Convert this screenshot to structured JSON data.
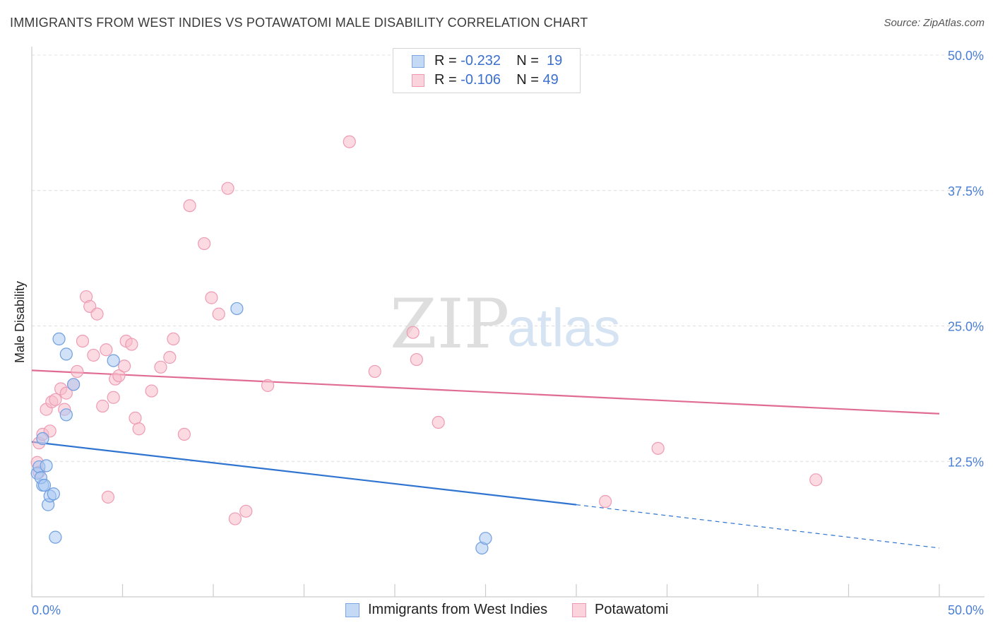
{
  "header": {
    "title": "IMMIGRANTS FROM WEST INDIES VS POTAWATOMI MALE DISABILITY CORRELATION CHART",
    "source": "Source: ZipAtlas.com"
  },
  "legend": {
    "rows": [
      {
        "r_label": "R = ",
        "r_value": "-0.232",
        "n_label": "N = ",
        "n_value": "19",
        "color": "#a9c8f2"
      },
      {
        "r_label": "R = ",
        "r_value": "-0.106",
        "n_label": "N = ",
        "n_value": "49",
        "color": "#f7bccb"
      }
    ]
  },
  "bottom_legend": {
    "items": [
      {
        "label": "Immigrants from West Indies",
        "color": "#a9c8f2"
      },
      {
        "label": "Potawatomi",
        "color": "#f7bccb"
      }
    ]
  },
  "watermark": {
    "zip": "ZIP",
    "atlas": "atlas"
  },
  "chart_data": {
    "type": "scatter",
    "title": "IMMIGRANTS FROM WEST INDIES VS POTAWATOMI MALE DISABILITY CORRELATION CHART",
    "xlabel": "",
    "ylabel": "Male Disability",
    "xlim": [
      0,
      50
    ],
    "ylim": [
      0,
      50
    ],
    "x_tick_labels": [
      "0.0%",
      "50.0%"
    ],
    "y_ticks": [
      12.5,
      25.0,
      37.5,
      50.0
    ],
    "y_tick_labels": [
      "12.5%",
      "25.0%",
      "37.5%",
      "50.0%"
    ],
    "grid": true,
    "legend_position": "top-center",
    "series": [
      {
        "name": "Immigrants from West Indies",
        "color": "#a9c8f2",
        "line_color": "#2f74d0",
        "points": [
          [
            0.3,
            11.4
          ],
          [
            0.4,
            12.0
          ],
          [
            0.6,
            10.3
          ],
          [
            0.6,
            14.6
          ],
          [
            0.8,
            12.1
          ],
          [
            0.9,
            8.5
          ],
          [
            1.0,
            9.3
          ],
          [
            1.2,
            9.5
          ],
          [
            1.3,
            5.5
          ],
          [
            1.5,
            23.8
          ],
          [
            1.9,
            22.4
          ],
          [
            1.9,
            16.8
          ],
          [
            2.3,
            19.6
          ],
          [
            4.5,
            21.8
          ],
          [
            11.3,
            26.6
          ],
          [
            24.8,
            4.5
          ],
          [
            25.0,
            5.4
          ],
          [
            0.5,
            11.0
          ],
          [
            0.7,
            10.3
          ]
        ],
        "trend": {
          "x": [
            0,
            30
          ],
          "y": [
            14.3,
            8.5
          ]
        },
        "trend_dashed": {
          "x": [
            30,
            50
          ],
          "y": [
            8.5,
            4.5
          ]
        }
      },
      {
        "name": "Potawatomi",
        "color": "#f7bccb",
        "line_color": "#e06c94",
        "points": [
          [
            0.3,
            12.4
          ],
          [
            0.4,
            11.5
          ],
          [
            0.4,
            14.2
          ],
          [
            0.6,
            15.0
          ],
          [
            0.8,
            17.3
          ],
          [
            1.0,
            15.3
          ],
          [
            1.1,
            18.0
          ],
          [
            1.3,
            18.2
          ],
          [
            1.6,
            19.2
          ],
          [
            1.8,
            17.3
          ],
          [
            1.9,
            18.8
          ],
          [
            2.3,
            19.6
          ],
          [
            2.5,
            20.8
          ],
          [
            2.8,
            23.6
          ],
          [
            3.0,
            27.7
          ],
          [
            3.2,
            26.8
          ],
          [
            3.4,
            22.3
          ],
          [
            3.6,
            26.1
          ],
          [
            3.9,
            17.6
          ],
          [
            4.1,
            22.8
          ],
          [
            4.2,
            9.2
          ],
          [
            4.5,
            18.4
          ],
          [
            4.6,
            20.1
          ],
          [
            4.8,
            20.4
          ],
          [
            5.1,
            21.3
          ],
          [
            5.2,
            23.6
          ],
          [
            5.5,
            23.3
          ],
          [
            5.7,
            16.5
          ],
          [
            5.9,
            15.5
          ],
          [
            6.6,
            19.0
          ],
          [
            7.1,
            21.2
          ],
          [
            7.6,
            22.1
          ],
          [
            7.8,
            23.8
          ],
          [
            8.4,
            15.0
          ],
          [
            8.7,
            36.1
          ],
          [
            9.5,
            32.6
          ],
          [
            9.9,
            27.6
          ],
          [
            10.3,
            26.1
          ],
          [
            10.8,
            37.7
          ],
          [
            11.2,
            7.2
          ],
          [
            11.8,
            7.9
          ],
          [
            13.0,
            19.5
          ],
          [
            17.5,
            42.0
          ],
          [
            18.9,
            20.8
          ],
          [
            21.0,
            24.4
          ],
          [
            21.2,
            21.9
          ],
          [
            22.4,
            16.1
          ],
          [
            31.6,
            8.8
          ],
          [
            34.5,
            13.7
          ]
        ],
        "extra_points": [
          [
            43.2,
            10.8
          ]
        ],
        "trend": {
          "x": [
            0,
            50
          ],
          "y": [
            20.9,
            16.9
          ]
        }
      }
    ]
  }
}
